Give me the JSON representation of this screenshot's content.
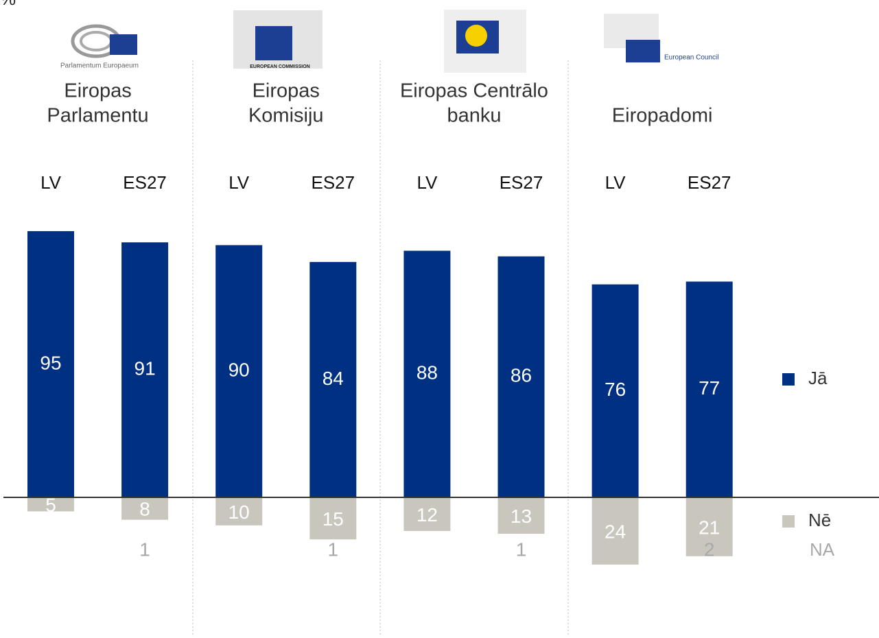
{
  "chart_data": {
    "type": "bar",
    "unit": "%",
    "groups": [
      [
        "Eiropas",
        "Parlamentu"
      ],
      [
        "Eiropas",
        "Komisiju"
      ],
      [
        "Eiropas Centrālo",
        "banku"
      ],
      [
        "Eiropadomi"
      ]
    ],
    "logos": [
      "Parlamentum Europaeum",
      "EUROPEAN COMMISSION",
      null,
      "European Council"
    ],
    "categories": [
      "LV",
      "ES27",
      "LV",
      "ES27",
      "LV",
      "ES27",
      "LV",
      "ES27"
    ],
    "series": [
      {
        "name": "Jā",
        "color": "#003082",
        "side": "above",
        "values": [
          95,
          91,
          90,
          84,
          88,
          86,
          76,
          77
        ]
      },
      {
        "name": "Nē",
        "color": "#c9c7bd",
        "side": "below",
        "values": [
          5,
          8,
          10,
          15,
          12,
          13,
          24,
          21
        ]
      },
      {
        "name": "NA",
        "color": "#a8a8a8",
        "side": "label",
        "values": [
          null,
          1,
          null,
          1,
          null,
          1,
          null,
          2
        ]
      }
    ]
  }
}
